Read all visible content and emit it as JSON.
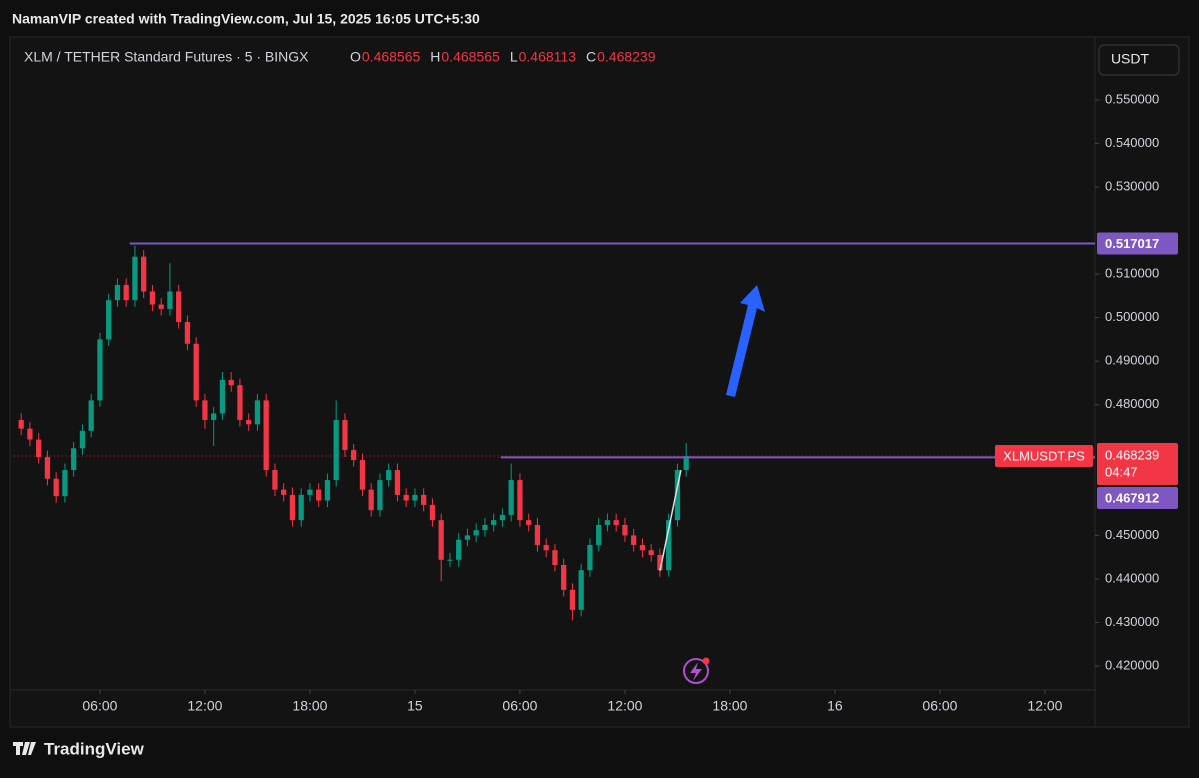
{
  "header": {
    "attribution": "NamanVIP created with TradingView.com, Jul 15, 2025 16:05 UTC+5:30"
  },
  "chart_data": {
    "type": "candlestick",
    "title": "XLM / TETHER Standard Futures · 5 · BINGX",
    "ohlc_legend": [
      {
        "label": "O",
        "value": 0.468565
      },
      {
        "label": "H",
        "value": 0.468565
      },
      {
        "label": "L",
        "value": 0.468113
      },
      {
        "label": "C",
        "value": 0.468239
      }
    ],
    "currency": "USDT",
    "up_color": "#089981",
    "down_color": "#f23645",
    "grid": false,
    "x": [
      1.5,
      2,
      2.5,
      3,
      3.5,
      4,
      4.5,
      5,
      5.5,
      6,
      6.5,
      7,
      7.5,
      8,
      8.5,
      9,
      9.5,
      10,
      10.5,
      11,
      11.5,
      12,
      12.5,
      13,
      13.5,
      14,
      14.5,
      15,
      15.5,
      16,
      16.5,
      17,
      17.5,
      18,
      18.5,
      19,
      19.5,
      20,
      20.5,
      21,
      21.5,
      22,
      22.5,
      23,
      23.5,
      24,
      24.5,
      25,
      25.5,
      26,
      26.5,
      27,
      27.5,
      28,
      28.5,
      29,
      29.5,
      30,
      30.5,
      31,
      31.5,
      32,
      32.5,
      33,
      33.5,
      34,
      34.5,
      35,
      35.5,
      36,
      36.5,
      37,
      37.5,
      38,
      38.5,
      39,
      39.5
    ],
    "open": [
      0.4765,
      0.4745,
      0.472,
      0.468,
      0.463,
      0.459,
      0.465,
      0.47,
      0.474,
      0.481,
      0.495,
      0.504,
      0.5075,
      0.504,
      0.514,
      0.506,
      0.503,
      0.502,
      0.506,
      0.499,
      0.494,
      0.481,
      0.4765,
      0.478,
      0.4857,
      0.4845,
      0.4765,
      0.4755,
      0.481,
      0.465,
      0.4605,
      0.4593,
      0.4535,
      0.4593,
      0.4605,
      0.458,
      0.4627,
      0.4765,
      0.4696,
      0.4673,
      0.4605,
      0.4558,
      0.4627,
      0.465,
      0.4593,
      0.458,
      0.4593,
      0.457,
      0.4535,
      0.4444,
      0.4444,
      0.449,
      0.45,
      0.4512,
      0.4524,
      0.4535,
      0.4547,
      0.4627,
      0.4535,
      0.4524,
      0.4478,
      0.4466,
      0.4432,
      0.4375,
      0.4329,
      0.442,
      0.4478,
      0.4524,
      0.4535,
      0.4524,
      0.45,
      0.4478,
      0.4466,
      0.4455,
      0.442,
      0.4535,
      0.465
    ],
    "high": [
      0.478,
      0.476,
      0.4735,
      0.4695,
      0.4645,
      0.4665,
      0.4715,
      0.4755,
      0.4825,
      0.4965,
      0.5055,
      0.509,
      0.509,
      0.5165,
      0.5155,
      0.5075,
      0.5045,
      0.5125,
      0.5075,
      0.5005,
      0.4955,
      0.4825,
      0.4795,
      0.4875,
      0.4875,
      0.486,
      0.478,
      0.4825,
      0.4825,
      0.4665,
      0.462,
      0.461,
      0.4608,
      0.462,
      0.462,
      0.4642,
      0.481,
      0.478,
      0.471,
      0.4688,
      0.462,
      0.4642,
      0.4665,
      0.4665,
      0.4608,
      0.4608,
      0.4608,
      0.4585,
      0.455,
      0.446,
      0.4505,
      0.4515,
      0.4527,
      0.454,
      0.455,
      0.4562,
      0.4665,
      0.4642,
      0.455,
      0.454,
      0.4493,
      0.448,
      0.4447,
      0.439,
      0.4435,
      0.4493,
      0.454,
      0.455,
      0.455,
      0.454,
      0.4515,
      0.4493,
      0.448,
      0.447,
      0.455,
      0.4665,
      0.4712
    ],
    "low": [
      0.473,
      0.4705,
      0.4665,
      0.4615,
      0.4575,
      0.4575,
      0.4635,
      0.4685,
      0.4725,
      0.4795,
      0.4935,
      0.5025,
      0.5025,
      0.5025,
      0.5045,
      0.5015,
      0.5005,
      0.5005,
      0.4975,
      0.4925,
      0.4795,
      0.4745,
      0.4705,
      0.4765,
      0.483,
      0.475,
      0.474,
      0.474,
      0.4635,
      0.459,
      0.4578,
      0.452,
      0.452,
      0.4578,
      0.4565,
      0.4565,
      0.4612,
      0.468,
      0.4658,
      0.459,
      0.4543,
      0.4543,
      0.4612,
      0.4578,
      0.4565,
      0.4565,
      0.4555,
      0.452,
      0.4395,
      0.4428,
      0.4428,
      0.4475,
      0.4485,
      0.4497,
      0.4509,
      0.452,
      0.4532,
      0.452,
      0.4509,
      0.4463,
      0.445,
      0.4417,
      0.436,
      0.4305,
      0.4314,
      0.4405,
      0.4463,
      0.4509,
      0.4509,
      0.4485,
      0.4463,
      0.445,
      0.444,
      0.4405,
      0.4405,
      0.452,
      0.4635
    ],
    "close": [
      0.4745,
      0.472,
      0.468,
      0.463,
      0.459,
      0.465,
      0.47,
      0.474,
      0.481,
      0.495,
      0.504,
      0.5075,
      0.504,
      0.514,
      0.506,
      0.503,
      0.502,
      0.506,
      0.499,
      0.494,
      0.481,
      0.4765,
      0.478,
      0.4857,
      0.4845,
      0.4765,
      0.4755,
      0.481,
      0.465,
      0.4605,
      0.4593,
      0.4535,
      0.4593,
      0.4605,
      0.458,
      0.4627,
      0.4765,
      0.4696,
      0.4673,
      0.4605,
      0.4558,
      0.4627,
      0.465,
      0.4593,
      0.458,
      0.4593,
      0.457,
      0.4535,
      0.4444,
      0.4444,
      0.449,
      0.45,
      0.4512,
      0.4524,
      0.4535,
      0.4547,
      0.4627,
      0.4535,
      0.4524,
      0.4478,
      0.4466,
      0.4432,
      0.4375,
      0.4329,
      0.442,
      0.4478,
      0.4524,
      0.4535,
      0.4524,
      0.45,
      0.4478,
      0.4466,
      0.4455,
      0.442,
      0.4535,
      0.465,
      0.4682
    ],
    "xlim": [
      1.09,
      62.86
    ],
    "xticks": [
      {
        "value": 6,
        "label": "06:00"
      },
      {
        "value": 12,
        "label": "12:00"
      },
      {
        "value": 18,
        "label": "18:00"
      },
      {
        "value": 24,
        "label": "15"
      },
      {
        "value": 30,
        "label": "06:00"
      },
      {
        "value": 36,
        "label": "12:00"
      },
      {
        "value": 42,
        "label": "18:00"
      },
      {
        "value": 48,
        "label": "16"
      },
      {
        "value": 54,
        "label": "06:00"
      },
      {
        "value": 60,
        "label": "12:00"
      }
    ],
    "ylim": [
      0.4145,
      0.5642
    ],
    "yticks": [
      {
        "value": 0.42,
        "label": "0.420000"
      },
      {
        "value": 0.43,
        "label": "0.430000"
      },
      {
        "value": 0.44,
        "label": "0.440000"
      },
      {
        "value": 0.45,
        "label": "0.450000"
      },
      {
        "value": 0.48,
        "label": "0.480000"
      },
      {
        "value": 0.49,
        "label": "0.490000"
      },
      {
        "value": 0.5,
        "label": "0.500000"
      },
      {
        "value": 0.51,
        "label": "0.510000"
      },
      {
        "value": 0.53,
        "label": "0.530000"
      },
      {
        "value": 0.54,
        "label": "0.540000"
      },
      {
        "value": 0.55,
        "label": "0.550000"
      }
    ],
    "levels": [
      {
        "value": 0.517017,
        "from": 7.7,
        "color": "#7e57c2"
      },
      {
        "value": 0.467912,
        "from": 28.9,
        "color": "#7e57c2"
      }
    ],
    "price_line": {
      "symbol": "XLMUSDT.PS",
      "value": 0.468239,
      "countdown": "04:47",
      "color": "#f23645"
    },
    "trend_line": {
      "x": [
        38,
        39.2
      ],
      "y": [
        0.4419,
        0.465
      ],
      "color": "#e0e0e0"
    }
  },
  "footer": {
    "brand": "TradingView"
  }
}
